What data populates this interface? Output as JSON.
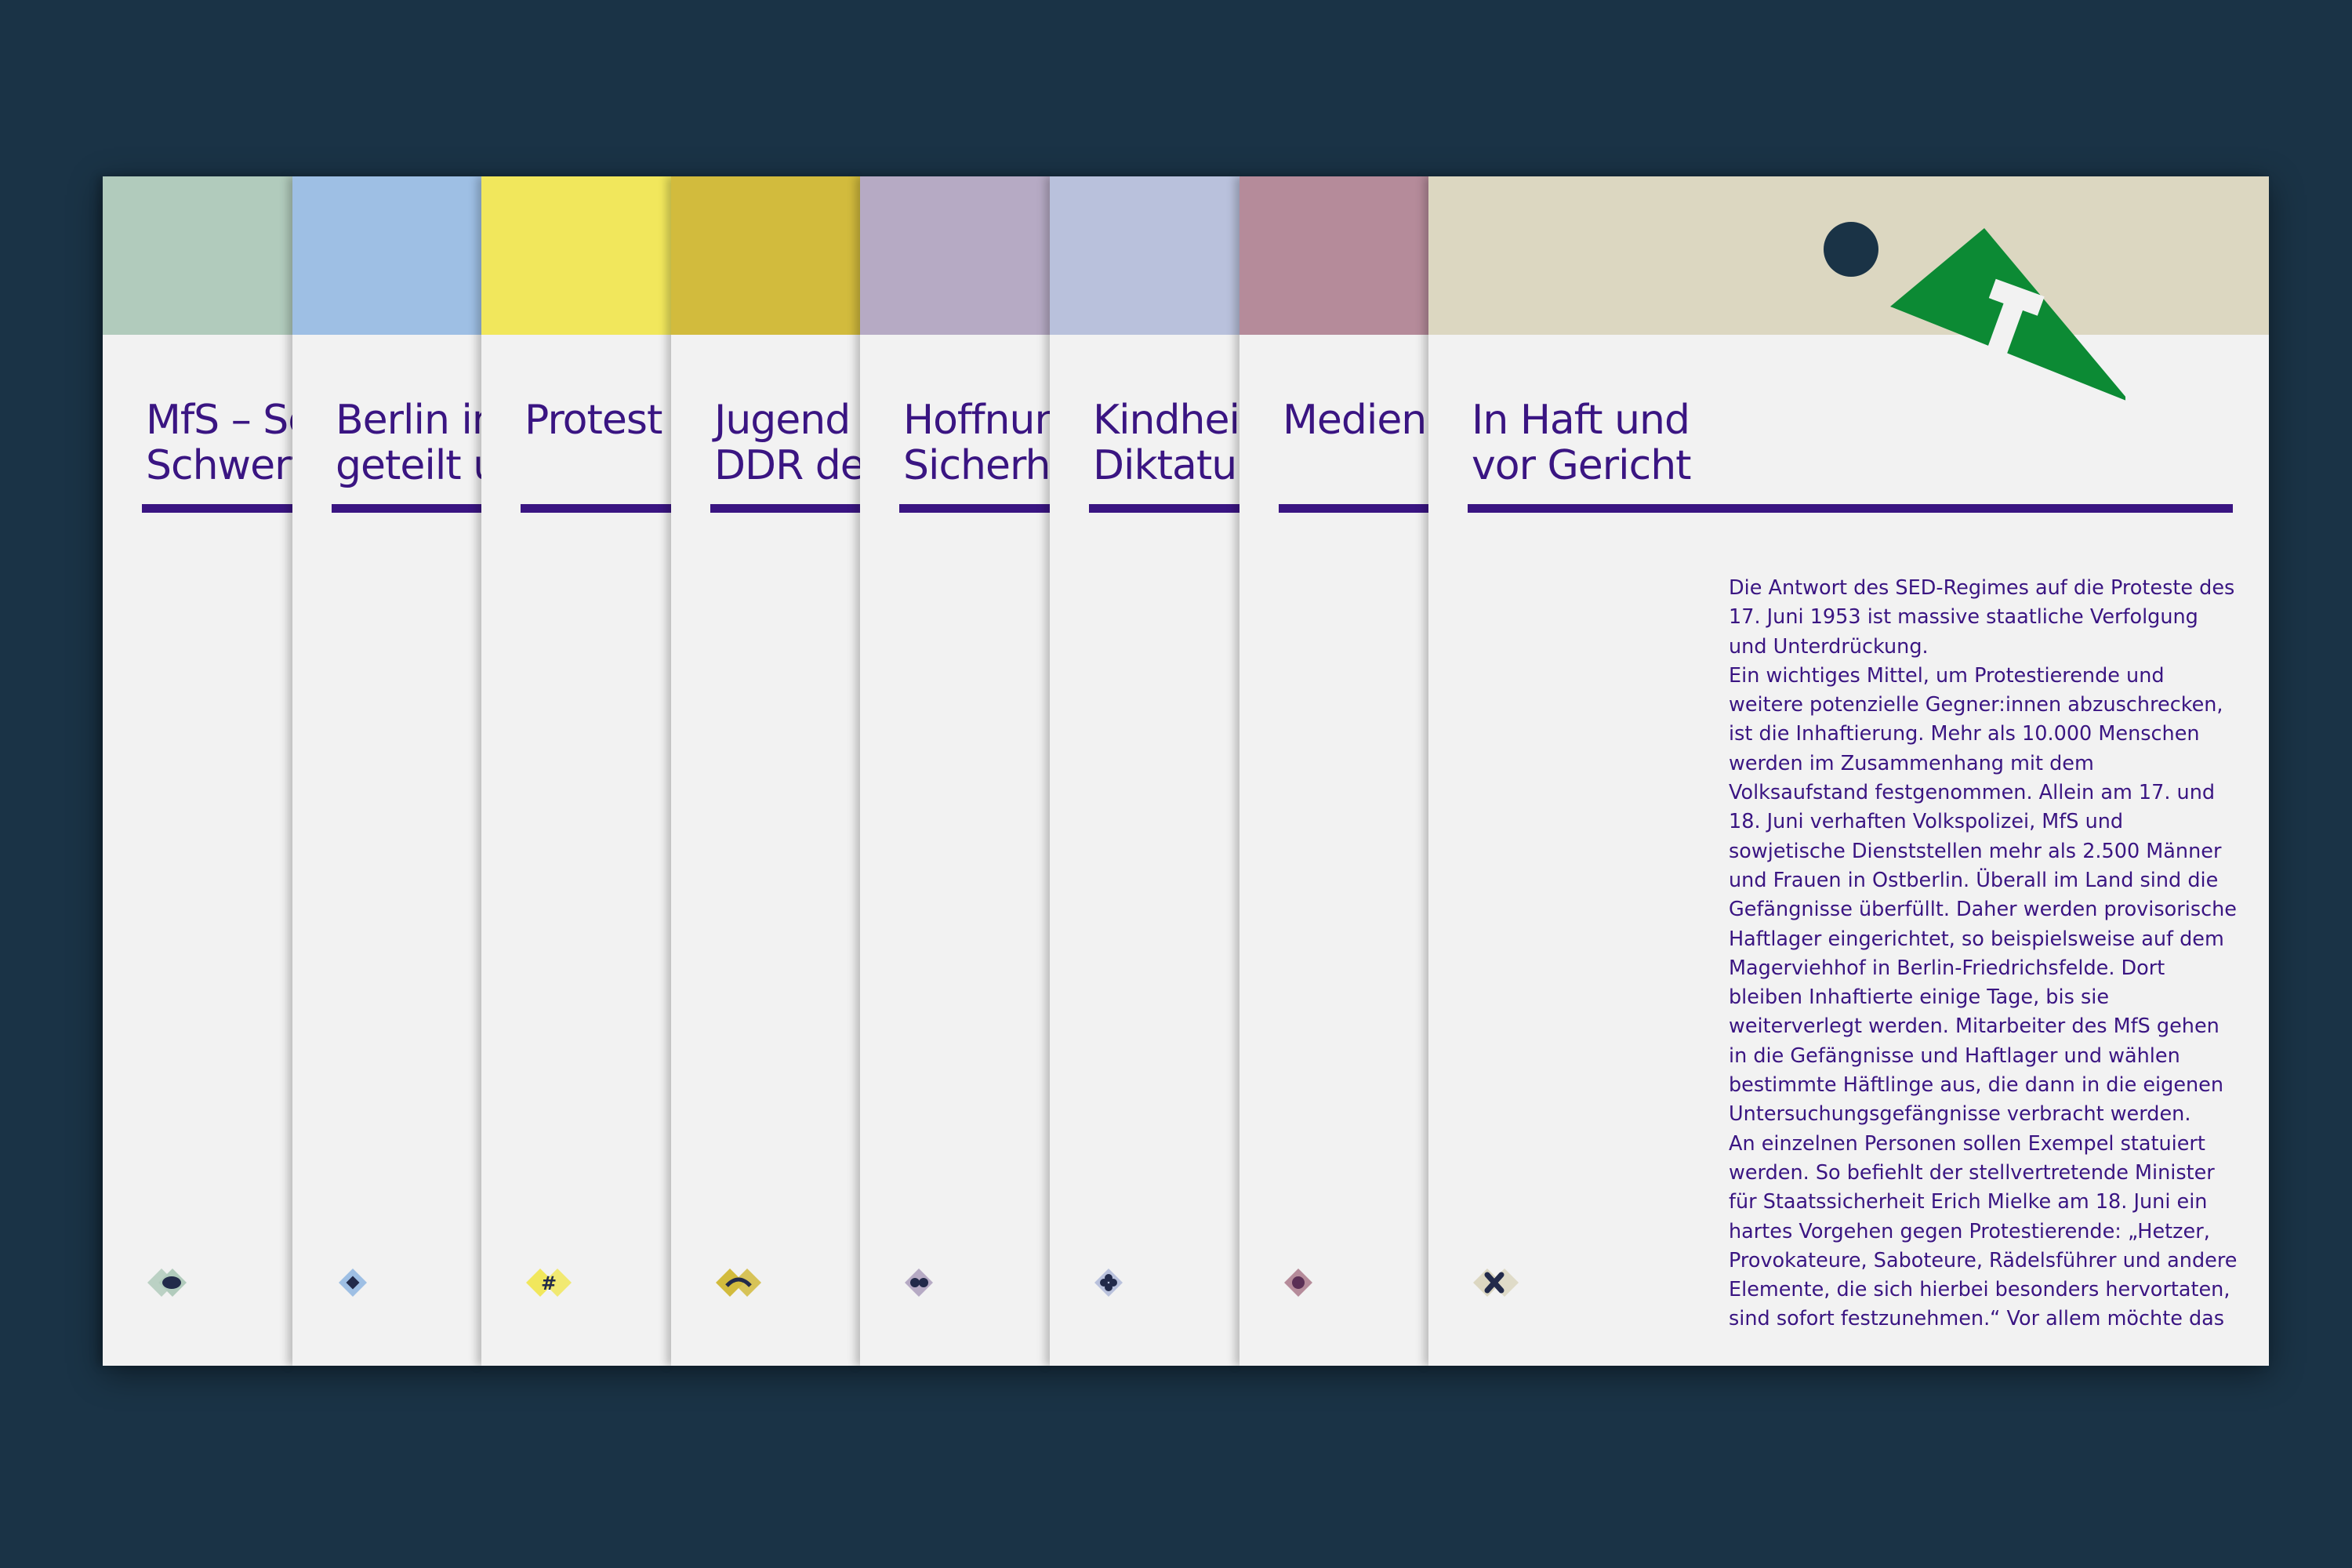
{
  "cards": [
    {
      "title": "MfS – Schild und\nSchwert der Partei",
      "band_color": "#b1cbbc",
      "mark_color": "#b1cbbc"
    },
    {
      "title": "Berlin im Kalten Krieg\ngeteilt und vereint",
      "band_color": "#9ebfe4",
      "mark_color": "#9ebfe4"
    },
    {
      "title": "Protest und Opposition",
      "band_color": "#f1e75c",
      "mark_color": "#f1e75c"
    },
    {
      "title": "Jugend in der\nDDR der Fünfziger",
      "band_color": "#d2bb3d",
      "mark_color": "#d2bb3d"
    },
    {
      "title": "Hoffnung und\nSicherheitsapparat",
      "band_color": "#b6aac4",
      "mark_color": "#b6aac4"
    },
    {
      "title": "Kindheit in der\nDiktatur der SED",
      "band_color": "#b9c1dc",
      "mark_color": "#b9c1dc"
    },
    {
      "title": "Medien und Zensur",
      "band_color": "#b58b9a",
      "mark_color": "#b58b9a"
    },
    {
      "title": "In Haft und\nvor Gericht",
      "band_color": "#dcd7c1",
      "mark_color": "#dcd7c1"
    }
  ],
  "active_card": {
    "triangle_color": "#0c8a34",
    "triangle_glyph": "T",
    "paragraphs": [
      "Die Antwort des SED-Regimes auf die Proteste des 17. Juni 1953 ist massive staatliche Verfolgung und Unterdrückung.",
      "Ein wichtiges Mittel, um Protestierende und weitere potenzielle Gegner:innen abzuschrecken, ist die Inhaftierung. Mehr als 10.000 Menschen werden im Zusammenhang mit dem Volksaufstand festge­nommen. Allein am 17. und 18. Juni verhaften Volks­polizei, MfS und sowjetische Dienststellen mehr als 2.500 Männer und Frauen in Ostberlin. Überall im Land sind die Gefängnisse überfüllt. Daher werden provisorische Haftlager eingerichtet, so beispiels­weise auf dem Magerviehhof in Berlin-Friedrichs­felde. Dort bleiben Inhaftierte einige Tage, bis sie weiterverlegt werden. Mitarbeiter des MfS gehen in die Gefängnisse und Haftlager und wählen bestimmte Häftlinge aus, die dann in die eigenen Untersuchungsgefängnisse verbracht werden.",
      "An einzelnen Personen sollen Exempel statuiert werden. So befiehlt der stellvertretende Minister für Staatssicherheit Erich Mielke am 18. Juni ein hartes Vorgehen gegen Protestierende: „Hetzer, Provokateure, Saboteure, Rädelsführer und andere Elemente, die sich hierbei besonders hervortaten, sind sofort festzunehmen.“ Vor allem möchte das"
    ]
  },
  "colors": {
    "background": "#1a3346",
    "ink": "#3a1582",
    "paper": "#f2f2f2",
    "mark_ink": "#222a4a"
  }
}
